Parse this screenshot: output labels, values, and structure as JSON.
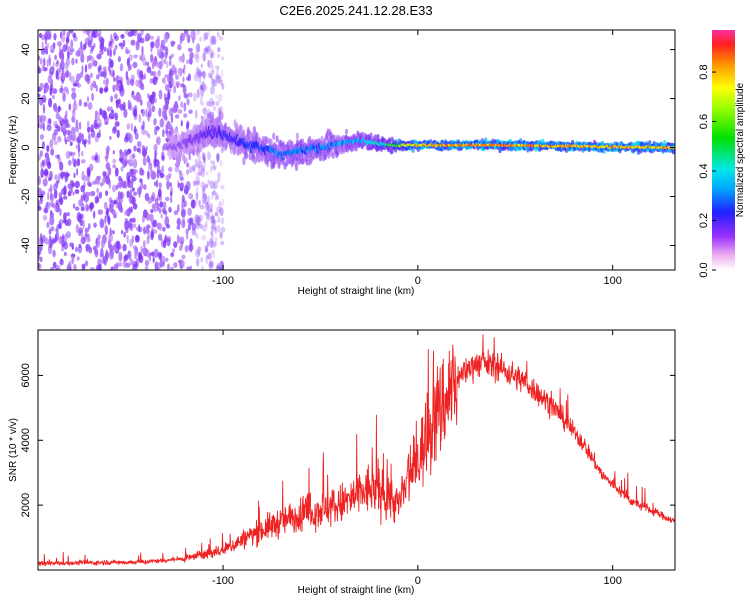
{
  "title": "C2E6.2025.241.12.28.E33",
  "colors": {
    "snr_line": "#ee2222",
    "scatter_low": "#7b2ff7",
    "scatter_mid": "#00e0e0",
    "scatter_high": "#ff2020"
  },
  "chart_data": [
    {
      "type": "heatmap",
      "name": "spectrogram",
      "xlabel": "Height of straight line (km)",
      "ylabel": "Frequency (Hz)",
      "xlim": [
        -195,
        132
      ],
      "ylim": [
        -50,
        48
      ],
      "x_ticks": [
        -100,
        0,
        100
      ],
      "y_ticks": [
        -40,
        -20,
        0,
        20,
        40
      ],
      "x_tick_labels": [
        "-100",
        "0",
        "100"
      ],
      "y_tick_labels": [
        "-40",
        "-20",
        "0",
        "20",
        "40"
      ],
      "noise_region_end_km": -110,
      "signal_track": [
        {
          "x": -125,
          "freq": 0,
          "spread": 6,
          "amp": 0.15
        },
        {
          "x": -105,
          "freq": 7,
          "spread": 8,
          "amp": 0.25
        },
        {
          "x": -90,
          "freq": 2,
          "spread": 8,
          "amp": 0.3
        },
        {
          "x": -70,
          "freq": -3,
          "spread": 6,
          "amp": 0.35
        },
        {
          "x": -50,
          "freq": 0,
          "spread": 6,
          "amp": 0.35
        },
        {
          "x": -30,
          "freq": 3,
          "spread": 4,
          "amp": 0.4
        },
        {
          "x": -15,
          "freq": 1,
          "spread": 3,
          "amp": 0.55
        },
        {
          "x": 0,
          "freq": 1,
          "spread": 2,
          "amp": 0.85
        },
        {
          "x": 40,
          "freq": 1,
          "spread": 2,
          "amp": 0.9
        },
        {
          "x": 80,
          "freq": 0.5,
          "spread": 2,
          "amp": 0.85
        },
        {
          "x": 130,
          "freq": 0,
          "spread": 2,
          "amp": 0.85
        }
      ],
      "colorbar": {
        "label": "Normalized spectral amplitude",
        "range": [
          0.0,
          0.97
        ],
        "ticks": [
          0.0,
          0.2,
          0.4,
          0.6,
          0.8
        ],
        "tick_labels": [
          "0.0",
          "0.2",
          "0.4",
          "0.6",
          "0.8"
        ]
      }
    },
    {
      "type": "line",
      "name": "snr",
      "xlabel": "Height of straight line (km)",
      "ylabel": "SNR (10 * v/v)",
      "xlim": [
        -195,
        132
      ],
      "ylim": [
        0,
        7400
      ],
      "x_ticks": [
        -100,
        0,
        100
      ],
      "y_ticks": [
        2000,
        4000,
        6000
      ],
      "x_tick_labels": [
        "-100",
        "0",
        "100"
      ],
      "y_tick_labels": [
        "2000",
        "4000",
        "6000"
      ],
      "envelope": {
        "x": [
          -195,
          -140,
          -120,
          -100,
          -85,
          -70,
          -55,
          -40,
          -25,
          -15,
          -10,
          0,
          10,
          20,
          30,
          40,
          55,
          70,
          85,
          95,
          110,
          132
        ],
        "y": [
          200,
          250,
          350,
          600,
          1100,
          1500,
          1800,
          2000,
          2500,
          2300,
          2000,
          3400,
          4800,
          5900,
          6400,
          6300,
          5800,
          5000,
          3900,
          2900,
          2100,
          1500
        ]
      }
    }
  ]
}
